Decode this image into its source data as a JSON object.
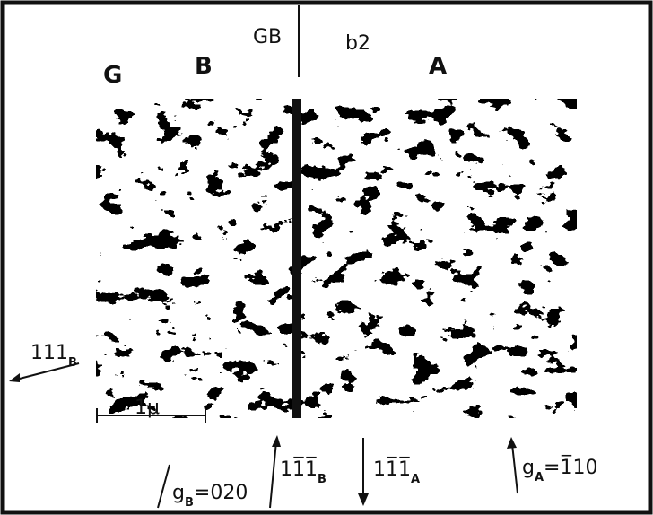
{
  "labels": {
    "grain_g": "G",
    "grain_b": "B",
    "boundary": "GB",
    "panel": "b2",
    "grain_a": "A",
    "dir_111_b": {
      "main": "111",
      "sub": "B"
    },
    "scale": "1μ",
    "g_b": {
      "main": "g",
      "sub": "B",
      "rest": "=020"
    },
    "dir_1m1m1_b": {
      "main": "11̅1̅",
      "sub": "B"
    },
    "dir_1m1m1_a": {
      "main": "11̅1̅",
      "sub": "A"
    },
    "g_a": {
      "main": "g",
      "sub": "A",
      "rest": "=1̅10"
    }
  }
}
